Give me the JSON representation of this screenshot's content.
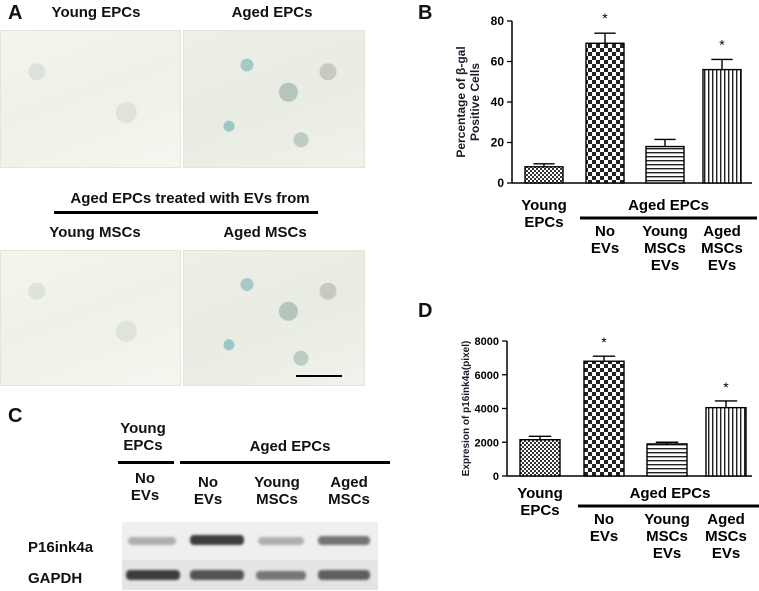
{
  "panel_a": {
    "letter": "A",
    "top_left_label": "Young EPCs",
    "top_right_label": "Aged EPCs",
    "treated_heading": "Aged EPCs treated with EVs from",
    "bottom_left_label": "Young MSCs",
    "bottom_right_label": "Aged MSCs"
  },
  "panel_c": {
    "letter": "C",
    "group_young": "Young EPCs",
    "group_aged": "Aged EPCs",
    "lanes": [
      "No EVs",
      "No EVs",
      "Young MSCs",
      "Aged MSCs"
    ],
    "row_labels": [
      "P16ink4a",
      "GAPDH"
    ],
    "p16_band_intensity": [
      0.35,
      0.85,
      0.35,
      0.6
    ],
    "gapdh_band_intensity": [
      0.85,
      0.75,
      0.6,
      0.7
    ]
  },
  "panel_b": {
    "letter": "B"
  },
  "panel_d": {
    "letter": "D"
  },
  "chart_data": [
    {
      "panel": "B",
      "type": "bar",
      "ylabel_lines": [
        "Percentage of β-gal",
        "Positive Cells"
      ],
      "ylim": [
        0,
        80
      ],
      "yticks": [
        "0",
        "20",
        "40",
        "60",
        "80"
      ],
      "values": [
        8,
        69,
        18,
        56
      ],
      "errors": [
        1.5,
        5,
        3.5,
        5
      ],
      "significance": [
        "",
        "*",
        "",
        "*"
      ],
      "x_labels": [
        "Young EPCs",
        "No EVs",
        "Young MSCs EVs",
        "Aged MSCs EVs"
      ],
      "group_label": "Aged EPCs",
      "patterns": [
        "dots",
        "checker",
        "horizontal",
        "vertical"
      ]
    },
    {
      "panel": "D",
      "type": "bar",
      "ylabel_lines": [
        "Expresion of p16ink4a(pixel)"
      ],
      "ylim": [
        0,
        8000
      ],
      "yticks": [
        "0",
        "2000",
        "4000",
        "6000",
        "8000"
      ],
      "values": [
        2150,
        6800,
        1900,
        4050
      ],
      "errors": [
        200,
        300,
        100,
        400
      ],
      "significance": [
        "",
        "*",
        "",
        "*"
      ],
      "x_labels": [
        "Young EPCs",
        "No EVs",
        "Young MSCs EVs",
        "Aged MSCs EVs"
      ],
      "group_label": "Aged EPCs",
      "patterns": [
        "dots",
        "checker",
        "horizontal",
        "vertical"
      ]
    }
  ]
}
